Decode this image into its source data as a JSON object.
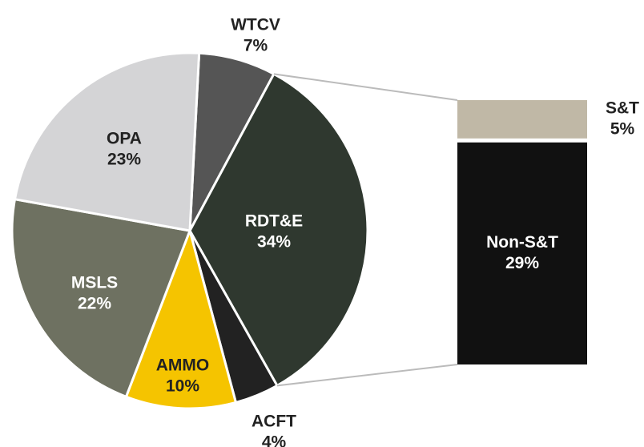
{
  "chart_data": {
    "type": "pie",
    "categories": [
      "WTCV",
      "RDT&E",
      "ACFT",
      "AMMO",
      "MSLS",
      "OPA"
    ],
    "values": [
      7,
      34,
      4,
      10,
      22,
      23
    ],
    "value_labels": [
      "7%",
      "34%",
      "4%",
      "10%",
      "22%",
      "23%"
    ],
    "colors": [
      "#555555",
      "#2f382f",
      "#222222",
      "#f5c400",
      "#6e7161",
      "#d4d4d6"
    ],
    "bar_categories": [
      "S&T",
      "Non-S&T"
    ],
    "bar_values": [
      5,
      29
    ],
    "bar_value_labels": [
      "5%",
      "29%"
    ],
    "bar_colors": [
      "#c0b8a6",
      "#111111"
    ]
  }
}
